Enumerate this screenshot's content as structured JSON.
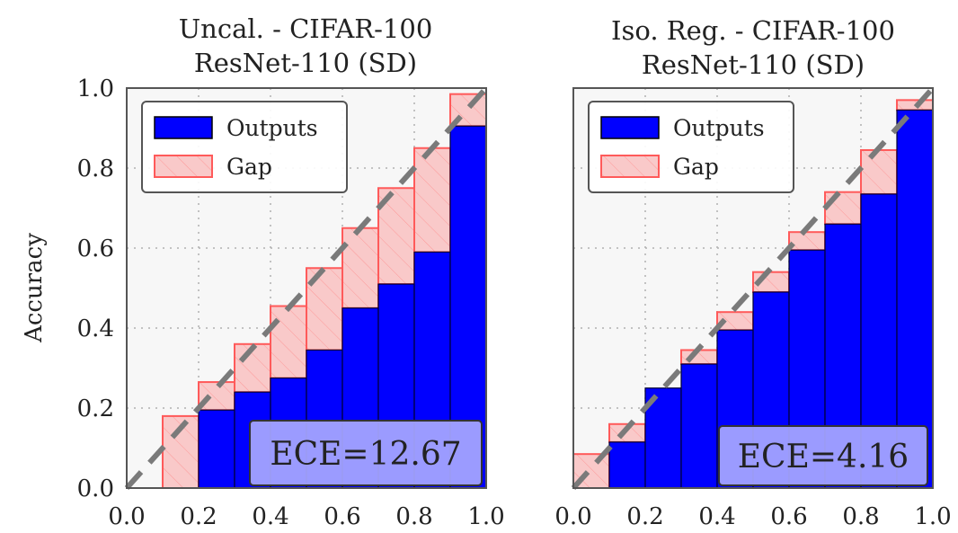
{
  "figure": {
    "ylabel": "Accuracy",
    "colors": {
      "outputs_fill": "#0000ff",
      "gap_fill": "#f9c9c9",
      "gap_edge": "#ff5a5a",
      "diagonal": "#7a7a7a",
      "plot_bg": "#f7f7f7",
      "ece_box": "#a8a8ff"
    }
  },
  "chart_data": [
    {
      "type": "bar",
      "title": "Uncal. - CIFAR-100\nResNet-110 (SD)",
      "title_lines": [
        "Uncal. - CIFAR-100",
        "ResNet-110 (SD)"
      ],
      "xlim": [
        0,
        1
      ],
      "ylim": [
        0,
        1
      ],
      "xticks": [
        "0.0",
        "0.2",
        "0.4",
        "0.6",
        "0.8",
        "1.0"
      ],
      "yticks": [
        "0.0",
        "0.2",
        "0.4",
        "0.6",
        "0.8",
        "1.0"
      ],
      "grid": true,
      "legend": {
        "position": "top-left",
        "entries": [
          "Outputs",
          "Gap"
        ]
      },
      "annotation": "ECE=12.67",
      "bins": [
        0.0,
        0.1,
        0.2,
        0.3,
        0.4,
        0.5,
        0.6,
        0.7,
        0.8,
        0.9
      ],
      "bin_width": 0.1,
      "series": [
        {
          "name": "Outputs",
          "values": [
            0.0,
            0.0,
            0.195,
            0.24,
            0.275,
            0.345,
            0.45,
            0.51,
            0.59,
            0.905
          ]
        },
        {
          "name": "Gap",
          "expected": [
            0.0,
            0.18,
            0.265,
            0.36,
            0.455,
            0.55,
            0.65,
            0.75,
            0.85,
            0.985
          ]
        }
      ]
    },
    {
      "type": "bar",
      "title": "Iso. Reg. - CIFAR-100\nResNet-110 (SD)",
      "title_lines": [
        "Iso. Reg. - CIFAR-100",
        "ResNet-110 (SD)"
      ],
      "xlim": [
        0,
        1
      ],
      "ylim": [
        0,
        1
      ],
      "xticks": [
        "0.0",
        "0.2",
        "0.4",
        "0.6",
        "0.8",
        "1.0"
      ],
      "yticks": [],
      "grid": true,
      "legend": {
        "position": "top-left",
        "entries": [
          "Outputs",
          "Gap"
        ]
      },
      "annotation": "ECE=4.16",
      "bins": [
        0.0,
        0.1,
        0.2,
        0.3,
        0.4,
        0.5,
        0.6,
        0.7,
        0.8,
        0.9
      ],
      "bin_width": 0.1,
      "series": [
        {
          "name": "Outputs",
          "values": [
            0.0,
            0.115,
            0.25,
            0.31,
            0.395,
            0.49,
            0.595,
            0.66,
            0.735,
            0.945
          ]
        },
        {
          "name": "Gap",
          "expected": [
            0.085,
            0.16,
            0.25,
            0.345,
            0.44,
            0.54,
            0.64,
            0.74,
            0.845,
            0.97
          ]
        }
      ]
    }
  ]
}
